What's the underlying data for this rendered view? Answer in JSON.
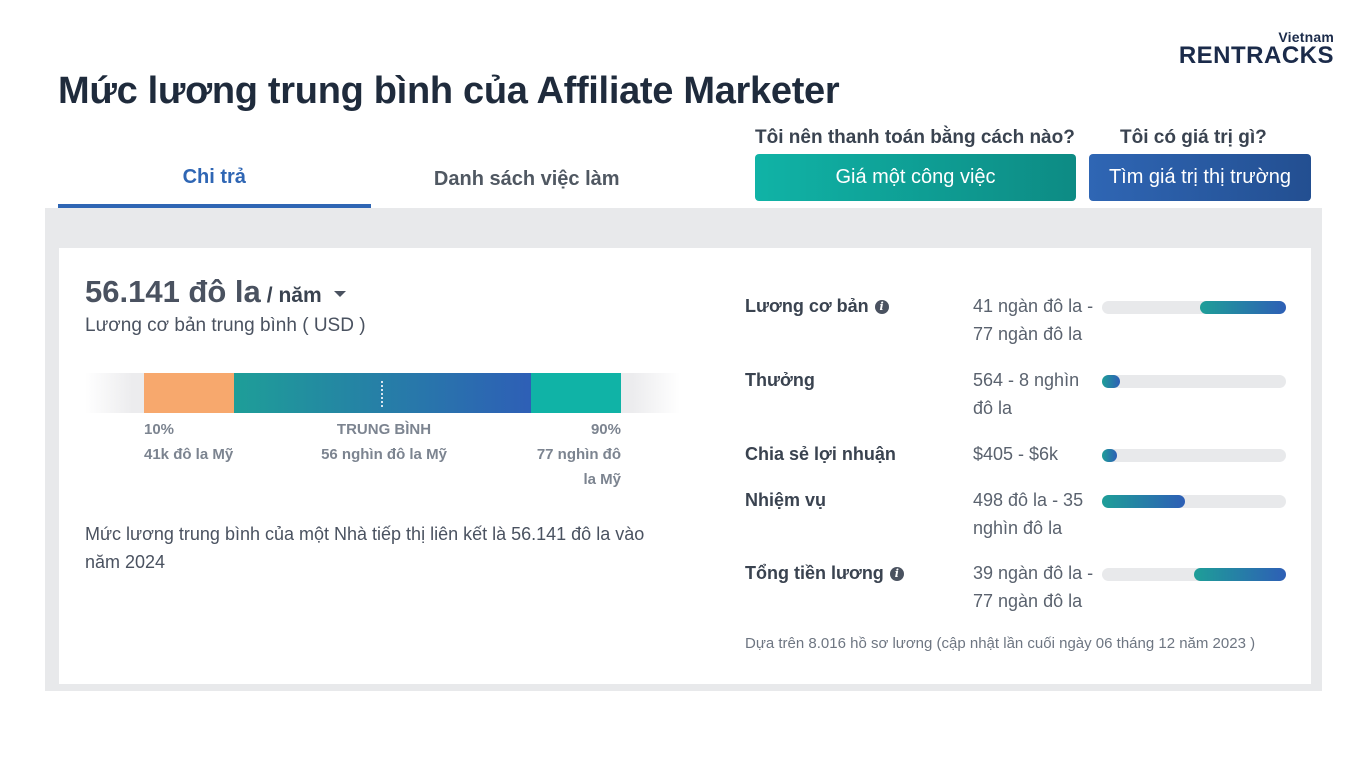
{
  "logo": {
    "small": "Vietnam",
    "big": "RENTRACKS"
  },
  "page_title": "Mức lương trung bình của Affiliate Marketer",
  "tabs": [
    {
      "label": "Chi trả",
      "active": true
    },
    {
      "label": "Danh sách việc làm",
      "active": false
    }
  ],
  "questions": {
    "left": "Tôi nên thanh toán bằng cách nào?",
    "right": "Tôi có giá trị gì?"
  },
  "buttons": {
    "teal": "Giá một công việc",
    "blue": "Tìm giá trị thị trường"
  },
  "salary": {
    "amount": "56.141 đô la",
    "period": "/ năm",
    "subtitle": "Lương cơ bản trung bình ( USD )"
  },
  "distribution": {
    "p10_label": "10%",
    "p10_value": "41k đô la Mỹ",
    "median_label": "TRUNG BÌNH",
    "median_value": "56 nghìn đô la Mỹ",
    "p90_label": "90%",
    "p90_value": "77 nghìn đô la Mỹ"
  },
  "description": "Mức lương trung bình của một Nhà tiếp thị liên kết là 56.141 đô la vào năm 2024",
  "breakdown": [
    {
      "label": "Lương cơ bản",
      "info": true,
      "value": "41 ngàn đô la - 77 ngàn đô la",
      "range_start": 0.53,
      "range_end": 1.0
    },
    {
      "label": "Thưởng",
      "info": false,
      "value": "564 - 8 nghìn đô la",
      "range_start": 0.0,
      "range_end": 0.1
    },
    {
      "label": "Chia sẻ lợi nhuận",
      "info": false,
      "value": "$405 - $6k",
      "range_start": 0.0,
      "range_end": 0.08
    },
    {
      "label": "Nhiệm vụ",
      "info": false,
      "value": "498 đô la - 35 nghìn đô la",
      "range_start": 0.0,
      "range_end": 0.45
    },
    {
      "label": "Tổng tiền lương",
      "info": true,
      "value": "39 ngàn đô la - 77 ngàn đô la",
      "range_start": 0.5,
      "range_end": 1.0
    }
  ],
  "footnote": "Dựa trên 8.016 hồ sơ lương (cập nhật lần cuối ngày 06 tháng 12 năm 2023 )"
}
